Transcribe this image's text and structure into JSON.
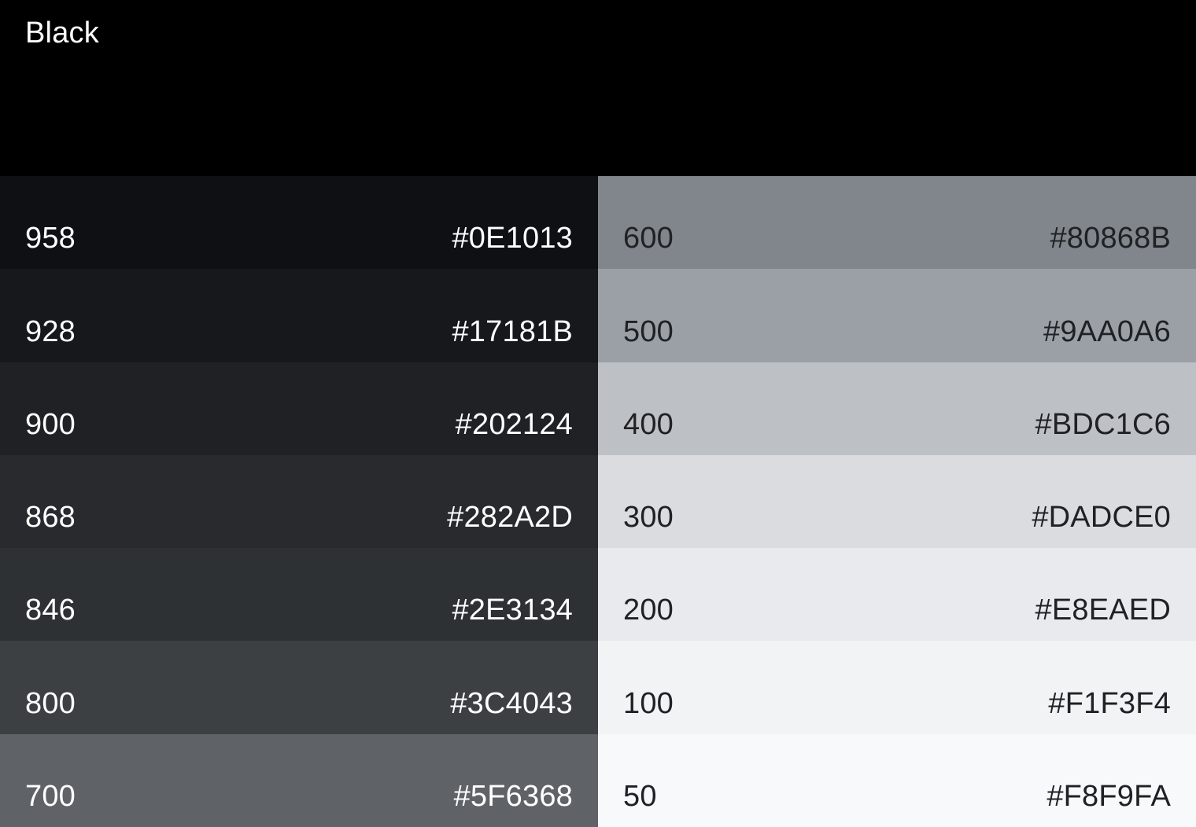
{
  "theme": {
    "header_bg": "#000000",
    "text_light": "#FFFFFF",
    "text_dark": "#202124"
  },
  "palette": {
    "name": "Black",
    "columns": [
      {
        "id": "dark-shades",
        "text_style": "light",
        "swatches": [
          {
            "tone": "958",
            "hex": "#0E1013"
          },
          {
            "tone": "928",
            "hex": "#17181B"
          },
          {
            "tone": "900",
            "hex": "#202124"
          },
          {
            "tone": "868",
            "hex": "#282A2D"
          },
          {
            "tone": "846",
            "hex": "#2E3134"
          },
          {
            "tone": "800",
            "hex": "#3C4043"
          },
          {
            "tone": "700",
            "hex": "#5F6368"
          }
        ]
      },
      {
        "id": "light-shades",
        "text_style": "dark",
        "swatches": [
          {
            "tone": "600",
            "hex": "#80868B"
          },
          {
            "tone": "500",
            "hex": "#9AA0A6"
          },
          {
            "tone": "400",
            "hex": "#BDC1C6"
          },
          {
            "tone": "300",
            "hex": "#DADCE0"
          },
          {
            "tone": "200",
            "hex": "#E8EAED"
          },
          {
            "tone": "100",
            "hex": "#F1F3F4"
          },
          {
            "tone": "50",
            "hex": "#F8F9FA"
          }
        ]
      }
    ]
  }
}
